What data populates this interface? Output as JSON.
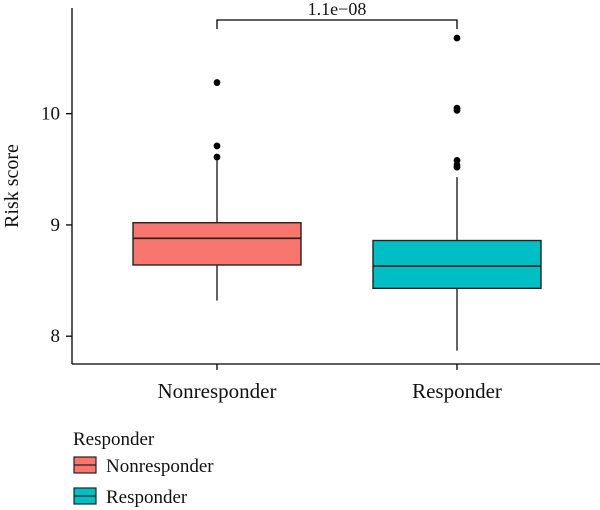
{
  "chart_data": {
    "type": "box",
    "title": "",
    "xlabel": "",
    "ylabel": "Risk score",
    "ylim": [
      7.75,
      10.95
    ],
    "yticks": [
      8,
      9,
      10
    ],
    "grid": false,
    "legend_position": "bottom-left",
    "categories": [
      "Nonresponder",
      "Responder"
    ],
    "series": [
      {
        "name": "Nonresponder",
        "color": "#F8766D",
        "q1": 8.64,
        "median": 8.88,
        "q3": 9.02,
        "whisker_low": 8.32,
        "whisker_high": 9.58,
        "outliers": [
          9.61,
          9.71,
          10.28
        ]
      },
      {
        "name": "Responder",
        "color": "#00BFC4",
        "q1": 8.43,
        "median": 8.63,
        "q3": 8.86,
        "whisker_low": 7.87,
        "whisker_high": 9.43,
        "outliers": [
          9.52,
          9.54,
          9.58,
          10.03,
          10.05,
          10.68
        ]
      }
    ],
    "annotation": {
      "text": "1.1e−08",
      "from": "Nonresponder",
      "to": "Responder"
    },
    "legend": {
      "title": "Responder",
      "items": [
        "Nonresponder",
        "Responder"
      ]
    }
  }
}
